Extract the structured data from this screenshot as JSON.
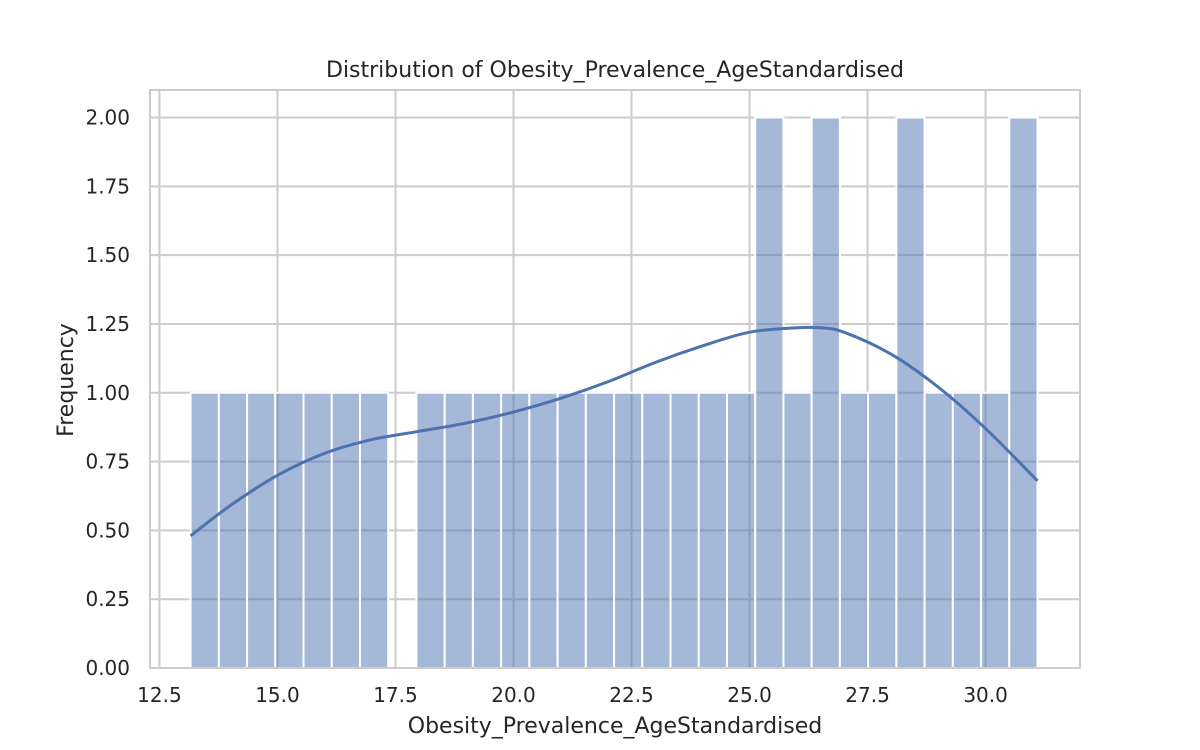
{
  "chart_data": {
    "type": "bar",
    "title": "Distribution of Obesity_Prevalence_AgeStandardised",
    "xlabel": "Obesity_Prevalence_AgeStandardised",
    "ylabel": "Frequency",
    "xlim": [
      12.3,
      32.0
    ],
    "ylim": [
      0,
      2.1
    ],
    "grid": true,
    "legend": "none",
    "x_ticks": [
      12.5,
      15.0,
      17.5,
      20.0,
      22.5,
      25.0,
      27.5,
      30.0
    ],
    "x_tick_labels": [
      "12.5",
      "15.0",
      "17.5",
      "20.0",
      "22.5",
      "25.0",
      "27.5",
      "30.0"
    ],
    "y_ticks": [
      0,
      0.25,
      0.5,
      0.75,
      1.0,
      1.25,
      1.5,
      1.75,
      2.0
    ],
    "y_tick_labels": [
      "0.00",
      "0.25",
      "0.50",
      "0.75",
      "1.00",
      "1.25",
      "1.50",
      "1.75",
      "2.00"
    ],
    "bins": {
      "start": 13.16,
      "width": 0.598,
      "counts": [
        1,
        1,
        1,
        1,
        1,
        1,
        1,
        0,
        1,
        1,
        1,
        1,
        1,
        1,
        1,
        1,
        1,
        1,
        1,
        1,
        2,
        1,
        2,
        1,
        1,
        2,
        1,
        1,
        1,
        2
      ]
    },
    "kde": {
      "x": [
        13.16,
        14.0,
        15.0,
        16.0,
        17.0,
        18.0,
        19.0,
        20.0,
        21.0,
        22.0,
        23.0,
        24.0,
        25.0,
        26.0,
        26.5,
        27.0,
        28.0,
        29.0,
        30.0,
        31.1
      ],
      "y": [
        0.48,
        0.59,
        0.7,
        0.78,
        0.83,
        0.86,
        0.89,
        0.93,
        0.98,
        1.04,
        1.11,
        1.17,
        1.22,
        1.236,
        1.236,
        1.22,
        1.14,
        1.02,
        0.87,
        0.68
      ]
    },
    "colors": {
      "bar_fill": "#4c72b0",
      "bar_opacity": 0.5,
      "line": "#4c72b0",
      "grid": "#cccccc",
      "frame": "#cccccc"
    }
  }
}
